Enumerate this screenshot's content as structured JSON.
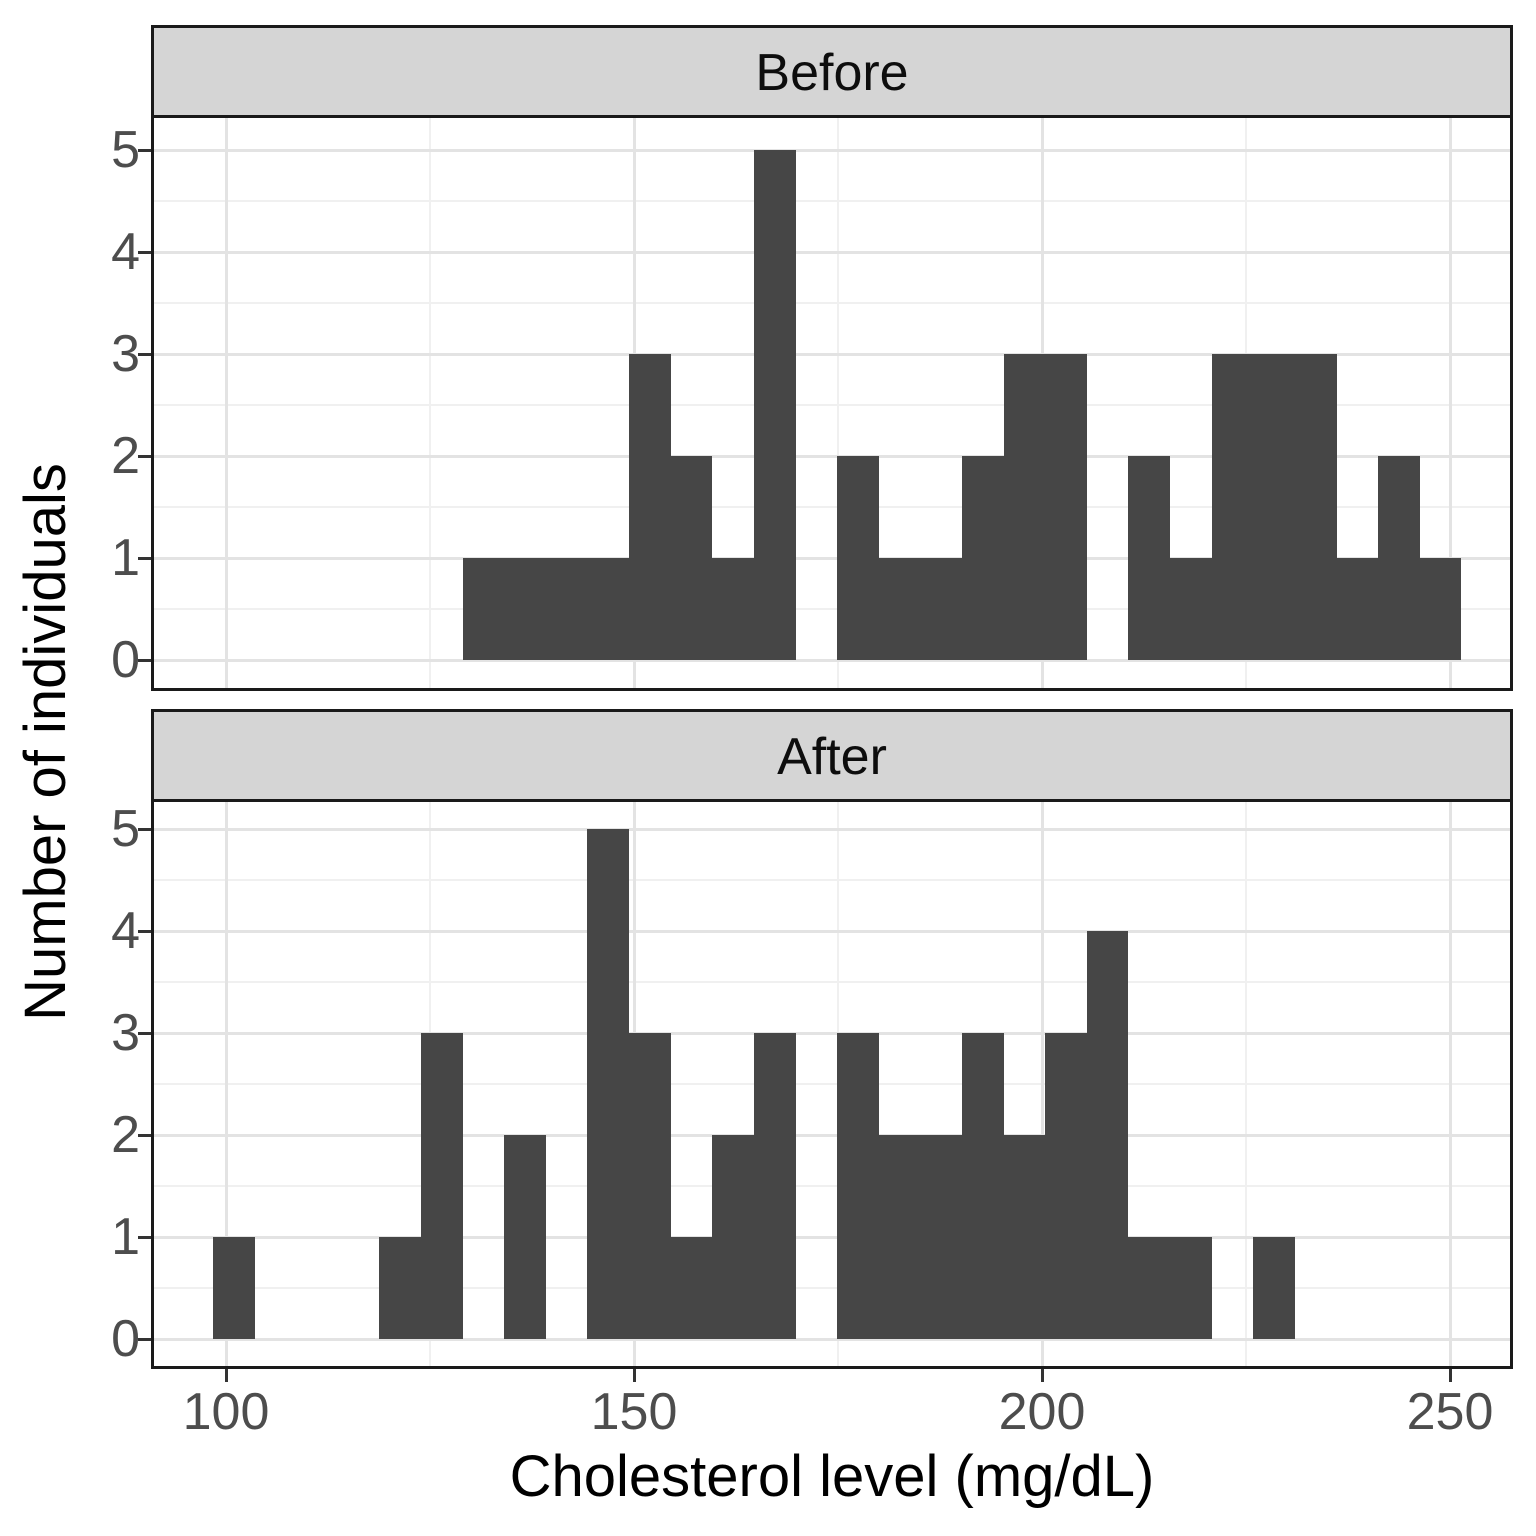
{
  "chart_data": {
    "type": "bar",
    "subtype": "faceted-histogram",
    "title": "",
    "xlabel": "Cholesterol level (mg/dL)",
    "ylabel": "Number of individuals",
    "x_ticks": [
      100,
      150,
      200,
      250
    ],
    "x_minor_ticks": [
      125,
      175,
      225
    ],
    "y_ticks": [
      0,
      1,
      2,
      3,
      4,
      5
    ],
    "y_minor_ticks": [
      0.5,
      1.5,
      2.5,
      3.5,
      4.5
    ],
    "xlim": [
      91.2,
      257.2
    ],
    "ylim": [
      -0.28,
      5.32
    ],
    "bin_start": 98.4,
    "bin_width": 5.1,
    "grid": "on",
    "legend": "none",
    "facets": [
      {
        "label": "Before",
        "counts": [
          0,
          0,
          0,
          0,
          0,
          0,
          1,
          1,
          1,
          1,
          3,
          2,
          1,
          5,
          0,
          2,
          1,
          1,
          2,
          3,
          3,
          0,
          2,
          1,
          3,
          3,
          3,
          1,
          2,
          1
        ]
      },
      {
        "label": "After",
        "counts": [
          1,
          0,
          0,
          0,
          1,
          3,
          0,
          2,
          0,
          5,
          3,
          1,
          2,
          3,
          0,
          3,
          2,
          2,
          3,
          2,
          3,
          4,
          1,
          1,
          0,
          1,
          0,
          0,
          0,
          0
        ]
      }
    ]
  },
  "colors": {
    "bar": "#464646",
    "strip_bg": "#D5D5D5",
    "border": "#1A1A1A",
    "grid_major": "#E3E3E3",
    "grid_minor": "#F0F0F0",
    "tick_label": "#4D4D4D",
    "tick_mark": "#333333",
    "title": "#000000"
  }
}
